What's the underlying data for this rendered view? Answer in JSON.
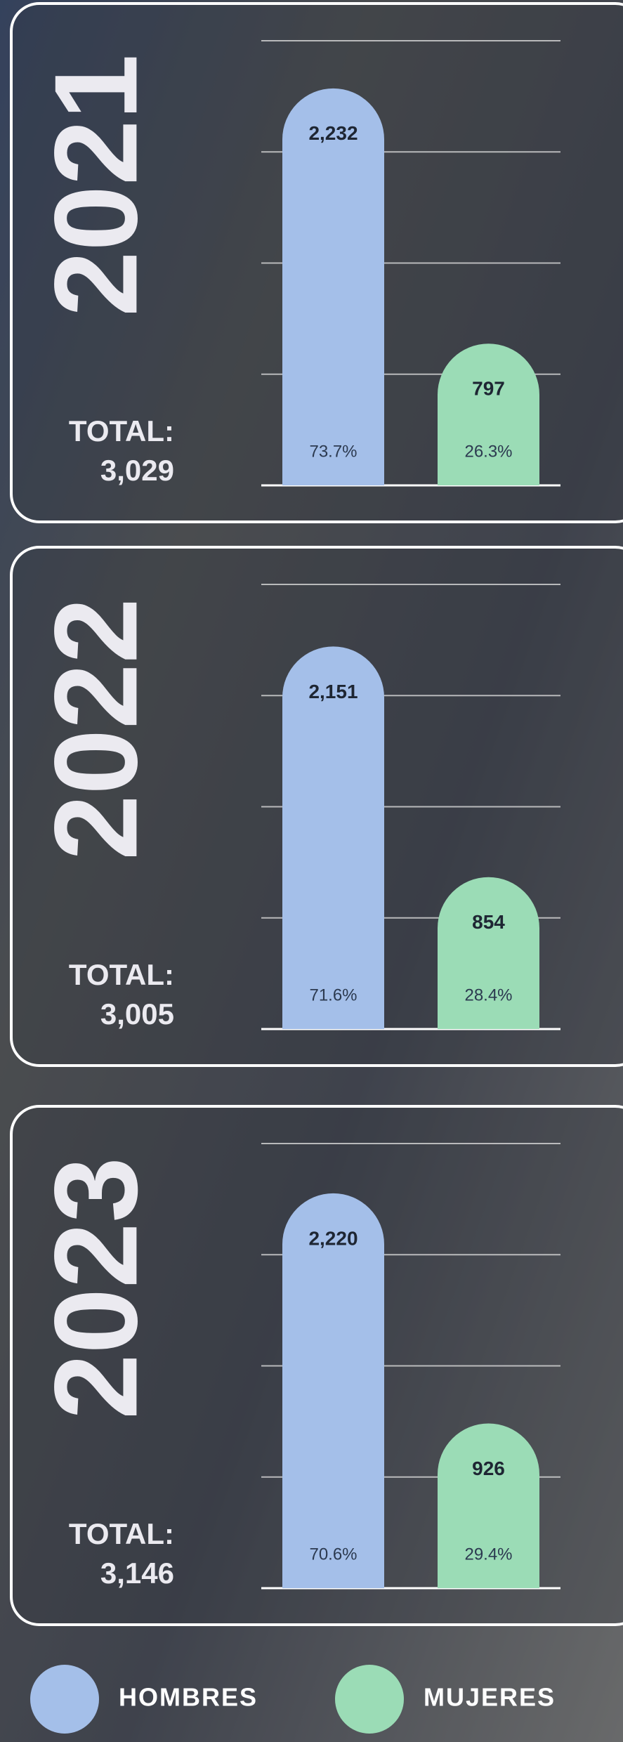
{
  "legend": [
    {
      "name": "HOMBRES",
      "color": "#a4bfe9"
    },
    {
      "name": "MUJERES",
      "color": "#9bdcb6"
    }
  ],
  "chart_data": [
    {
      "type": "bar",
      "title": "2021",
      "total_label": "TOTAL:",
      "total": "3,029",
      "values": [
        2232,
        797
      ],
      "value_labels": [
        "2,232",
        "797"
      ],
      "percent_labels": [
        "73.7%",
        "26.3%"
      ],
      "ylim": [
        0,
        2500
      ],
      "yticks": [
        0,
        625,
        1250,
        1875,
        2500
      ],
      "grid": true
    },
    {
      "type": "bar",
      "title": "2022",
      "total_label": "TOTAL:",
      "total": "3,005",
      "values": [
        2151,
        854
      ],
      "value_labels": [
        "2,151",
        "854"
      ],
      "percent_labels": [
        "71.6%",
        "28.4%"
      ],
      "ylim": [
        0,
        2500
      ],
      "yticks": [
        0,
        625,
        1250,
        1875,
        2500
      ],
      "grid": true
    },
    {
      "type": "bar",
      "title": "2023",
      "total_label": "TOTAL:",
      "total": "3,146",
      "values": [
        2220,
        926
      ],
      "value_labels": [
        "2,220",
        "926"
      ],
      "percent_labels": [
        "70.6%",
        "29.4%"
      ],
      "ylim": [
        0,
        2500
      ],
      "yticks": [
        0,
        625,
        1250,
        1875,
        2500
      ],
      "grid": true
    }
  ]
}
